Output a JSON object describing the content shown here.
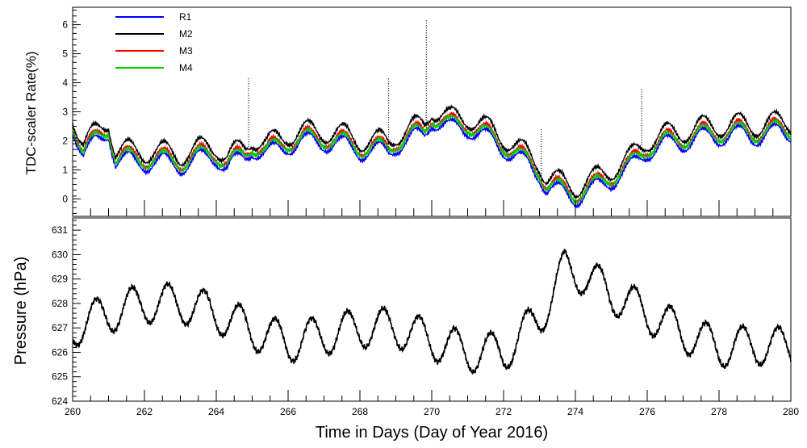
{
  "chart_data": [
    {
      "type": "line",
      "ylabel": "TDC-scaler Rate(%)",
      "xlim": [
        260,
        280
      ],
      "ylim": [
        -0.6,
        6.6
      ],
      "y_ticks": [
        0,
        1,
        2,
        3,
        4,
        5,
        6
      ],
      "legend": {
        "placement": "top-left",
        "entries": [
          "R1",
          "M2",
          "M3",
          "M4"
        ]
      },
      "series": [
        {
          "name": "R1",
          "color": "#0000ff",
          "offset": -0.12,
          "amp_scale": 1.0
        },
        {
          "name": "M2",
          "color": "#000000",
          "offset": 0.25,
          "amp_scale": 1.15
        },
        {
          "name": "M3",
          "color": "#ff0000",
          "offset": 0.05,
          "amp_scale": 1.05
        },
        {
          "name": "M4",
          "color": "#00cc00",
          "offset": 0.0,
          "amp_scale": 0.95
        }
      ],
      "baseline_points": [
        [
          260.0,
          2.7
        ],
        [
          260.3,
          1.6
        ],
        [
          260.8,
          2.2
        ],
        [
          261.0,
          2.5
        ],
        [
          261.2,
          1.4
        ],
        [
          262.0,
          1.4
        ],
        [
          263.0,
          1.3
        ],
        [
          264.0,
          1.6
        ],
        [
          264.3,
          1.2
        ],
        [
          264.8,
          1.5
        ],
        [
          265.0,
          1.9
        ],
        [
          265.4,
          1.6
        ],
        [
          266.0,
          2.0
        ],
        [
          267.0,
          2.1
        ],
        [
          268.0,
          1.8
        ],
        [
          268.8,
          1.7
        ],
        [
          269.0,
          2.0
        ],
        [
          269.8,
          2.3
        ],
        [
          270.0,
          2.9
        ],
        [
          270.5,
          2.5
        ],
        [
          271.0,
          2.6
        ],
        [
          271.5,
          2.2
        ],
        [
          272.0,
          1.9
        ],
        [
          272.5,
          1.4
        ],
        [
          273.0,
          1.0
        ],
        [
          273.2,
          0.5
        ],
        [
          273.6,
          0.3
        ],
        [
          274.0,
          0.2
        ],
        [
          274.5,
          0.4
        ],
        [
          275.0,
          0.8
        ],
        [
          275.5,
          1.1
        ],
        [
          276.0,
          1.8
        ],
        [
          277.0,
          2.1
        ],
        [
          278.0,
          2.3
        ],
        [
          279.0,
          2.3
        ],
        [
          280.0,
          2.4
        ]
      ],
      "daily_amplitude": 0.35,
      "spikes": [
        {
          "x": 264.9,
          "top": 4.2
        },
        {
          "x": 268.8,
          "top": 4.2
        },
        {
          "x": 269.85,
          "top": 6.2
        },
        {
          "x": 273.05,
          "top": 2.4
        },
        {
          "x": 275.85,
          "top": 3.8
        }
      ]
    },
    {
      "type": "line",
      "xlabel": "Time in Days (Day of Year 2016)",
      "ylabel": "Pressure (hPa)",
      "xlim": [
        260,
        280
      ],
      "ylim": [
        624,
        631.5
      ],
      "y_ticks": [
        624,
        625,
        626,
        627,
        628,
        629,
        630,
        631
      ],
      "x_ticks": [
        260,
        262,
        264,
        266,
        268,
        270,
        272,
        274,
        276,
        278,
        280
      ],
      "series": [
        {
          "name": "",
          "color": "#000000"
        }
      ],
      "baseline_points": [
        [
          260.0,
          627.0
        ],
        [
          261.0,
          627.6
        ],
        [
          262.0,
          628.0
        ],
        [
          263.0,
          628.0
        ],
        [
          264.0,
          627.6
        ],
        [
          265.0,
          626.9
        ],
        [
          266.0,
          626.4
        ],
        [
          267.0,
          626.7
        ],
        [
          268.0,
          627.0
        ],
        [
          269.0,
          627.0
        ],
        [
          270.0,
          626.5
        ],
        [
          271.0,
          626.0
        ],
        [
          272.0,
          626.0
        ],
        [
          273.0,
          627.4
        ],
        [
          273.7,
          629.4
        ],
        [
          274.2,
          629.2
        ],
        [
          275.0,
          628.4
        ],
        [
          276.0,
          627.6
        ],
        [
          277.0,
          626.8
        ],
        [
          278.0,
          626.2
        ],
        [
          279.0,
          626.3
        ],
        [
          280.0,
          626.2
        ]
      ],
      "daily_amplitude": 0.8
    }
  ]
}
